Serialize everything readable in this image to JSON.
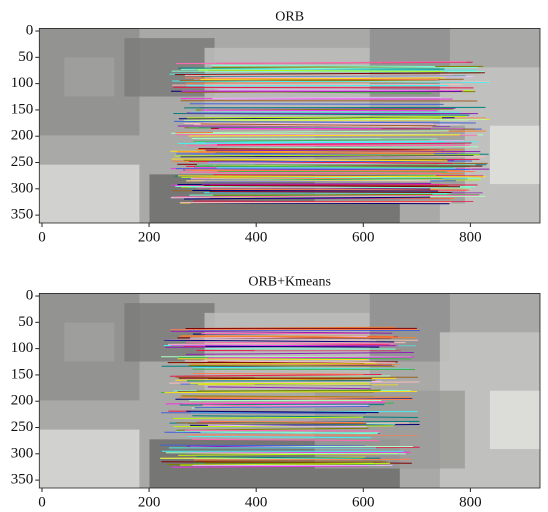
{
  "chart_data": [
    {
      "type": "image",
      "title": "ORB",
      "xlim": [
        -5,
        930
      ],
      "ylim": [
        365,
        -5
      ],
      "xticks": [
        0,
        200,
        400,
        600,
        800
      ],
      "yticks": [
        0,
        50,
        100,
        150,
        200,
        250,
        300,
        350
      ]
    },
    {
      "type": "image",
      "title": "ORB+Kmeans",
      "xlim": [
        -5,
        930
      ],
      "ylim": [
        365,
        -5
      ],
      "xticks": [
        0,
        200,
        400,
        600,
        800
      ],
      "yticks": [
        0,
        50,
        100,
        150,
        200,
        250,
        300,
        350
      ]
    }
  ]
}
